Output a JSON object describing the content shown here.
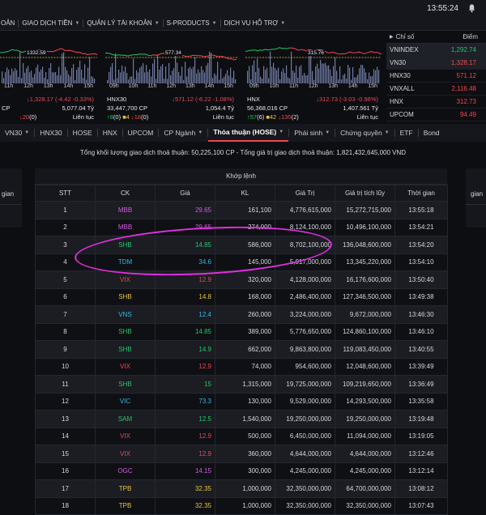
{
  "clock": "13:55:24",
  "menu": [
    {
      "label": "OẢN",
      "chevron": false
    },
    {
      "label": "GIAO DỊCH TIỀN",
      "chevron": true
    },
    {
      "label": "QUẢN LÝ TÀI KHOẢN",
      "chevron": true
    },
    {
      "label": "S-PRODUCTS",
      "chevron": true
    },
    {
      "label": "DỊCH VỤ HỖ TRỢ",
      "chevron": true
    }
  ],
  "charts": [
    {
      "name": "",
      "ref_label": "1332.59",
      "hours": [
        "11h",
        "12h",
        "13h",
        "14h",
        "15h"
      ],
      "value_line": "↓1,328.17 (-4.42 -0.33%)",
      "volume": "CP",
      "value": "5,077.04 Tỷ",
      "up": "",
      "down": "↓20",
      "down_extra": "(0)",
      "session": "Liên tục"
    },
    {
      "name": "HNX30",
      "ref_label": "577.34",
      "hours": [
        "09h",
        "10h",
        "11h",
        "12h",
        "13h",
        "14h",
        "15h"
      ],
      "value_line": "↓571.12 (-6.22 -1.08%)",
      "volume": "33,447,700 CP",
      "value": "1,054.4 Tỷ",
      "up": "↑8",
      "up_extra": "(0)",
      "flat": "■4",
      "down": "↓18",
      "down_extra": "(0)",
      "session": "Liên tục"
    },
    {
      "name": "HNX",
      "ref_label": "315.76",
      "hours": [
        "09h",
        "10h",
        "11h",
        "12h",
        "13h",
        "14h",
        "15h"
      ],
      "value_line": "↓312.73 (-3.03 -0.96%)",
      "volume": "56,368,016 CP",
      "value": "1,407.561 Tỷ",
      "up": "↑57",
      "up_extra": "(6)",
      "flat": "■42",
      "down": "↓135",
      "down_extra": "(2)",
      "session": "Liên tục"
    }
  ],
  "index_panel": {
    "col_name": "Chỉ số",
    "col_point": "Điểm",
    "rows": [
      {
        "name": "VNINDEX",
        "point": "1,292.74",
        "color": "#27c46b"
      },
      {
        "name": "VN30",
        "point": "1,328.17",
        "color": "#f0474f"
      },
      {
        "name": "HNX30",
        "point": "571.12",
        "color": "#f0474f"
      },
      {
        "name": "VNXALL",
        "point": "2,116.48",
        "color": "#f0474f"
      },
      {
        "name": "HNX",
        "point": "312.73",
        "color": "#f0474f"
      },
      {
        "name": "UPCOM",
        "point": "94.49",
        "color": "#f0474f"
      }
    ]
  },
  "tabs": [
    {
      "label": "VN30",
      "chevron": true,
      "active": false
    },
    {
      "label": "HNX30",
      "chevron": false,
      "active": false
    },
    {
      "label": "HOSE",
      "chevron": false,
      "active": false
    },
    {
      "label": "HNX",
      "chevron": false,
      "active": false
    },
    {
      "label": "UPCOM",
      "chevron": false,
      "active": false
    },
    {
      "label": "CP Ngành",
      "chevron": true,
      "active": false
    },
    {
      "label": "Thỏa thuận (HOSE)",
      "chevron": true,
      "active": true
    },
    {
      "label": "Phái sinh",
      "chevron": true,
      "active": false
    },
    {
      "label": "Chứng quyền",
      "chevron": true,
      "active": false
    },
    {
      "label": "ETF",
      "chevron": false,
      "active": false
    },
    {
      "label": "Bond",
      "chevron": false,
      "active": false
    }
  ],
  "summary": "Tổng khối lượng giao dịch thoả thuận: 50,225,100 CP - Tổng giá trị giao dịch thoả thuận: 1,821,432,645,000 VND",
  "left_stub_label": "gian",
  "right_stub_label": "gian",
  "table": {
    "group_header": "Khớp lệnh",
    "columns": [
      "STT",
      "CK",
      "Giá",
      "KL",
      "Giá Trị",
      "Giá trị tích lũy",
      "Thời gian"
    ],
    "rows": [
      {
        "stt": "1",
        "ck": "MBB",
        "price": "29.65",
        "kl": "161,100",
        "gt": "4,776,615,000",
        "gttl": "15,272,715,000",
        "time": "13:55:18",
        "ck_color": "#d25ce0",
        "price_color": "#d25ce0"
      },
      {
        "stt": "2",
        "ck": "MBB",
        "price": "29.65",
        "kl": "274,000",
        "gt": "8,124,100,000",
        "gttl": "10,496,100,000",
        "time": "13:54:21",
        "ck_color": "#d25ce0",
        "price_color": "#d25ce0"
      },
      {
        "stt": "3",
        "ck": "SHB",
        "price": "14.85",
        "kl": "586,000",
        "gt": "8,702,100,000",
        "gttl": "136,048,600,000",
        "time": "13:54:20",
        "ck_color": "#27c46b",
        "price_color": "#27c46b"
      },
      {
        "stt": "4",
        "ck": "TDM",
        "price": "34.6",
        "kl": "145,000",
        "gt": "5,017,000,000",
        "gttl": "13,345,220,000",
        "time": "13:54:10",
        "ck_color": "#33b9e8",
        "price_color": "#33b9e8"
      },
      {
        "stt": "5",
        "ck": "VIX",
        "price": "12.9",
        "kl": "320,000",
        "gt": "4,128,000,000",
        "gttl": "16,176,600,000",
        "time": "13:50:40",
        "ck_color": "#f0474f",
        "price_color": "#f0474f"
      },
      {
        "stt": "6",
        "ck": "SHB",
        "price": "14.8",
        "kl": "168,000",
        "gt": "2,486,400,000",
        "gttl": "127,346,500,000",
        "time": "13:49:38",
        "ck_color": "#e8c53a",
        "price_color": "#e8c53a"
      },
      {
        "stt": "7",
        "ck": "VNS",
        "price": "12.4",
        "kl": "260,000",
        "gt": "3,224,000,000",
        "gttl": "9,672,000,000",
        "time": "13:46:30",
        "ck_color": "#33b9e8",
        "price_color": "#33b9e8"
      },
      {
        "stt": "8",
        "ck": "SHB",
        "price": "14.85",
        "kl": "389,000",
        "gt": "5,776,650,000",
        "gttl": "124,860,100,000",
        "time": "13:46:10",
        "ck_color": "#27c46b",
        "price_color": "#27c46b"
      },
      {
        "stt": "9",
        "ck": "SHB",
        "price": "14.9",
        "kl": "662,000",
        "gt": "9,863,800,000",
        "gttl": "119,083,450,000",
        "time": "13:40:55",
        "ck_color": "#27c46b",
        "price_color": "#27c46b"
      },
      {
        "stt": "10",
        "ck": "VIX",
        "price": "12.9",
        "kl": "74,000",
        "gt": "954,600,000",
        "gttl": "12,048,600,000",
        "time": "13:39:49",
        "ck_color": "#f0474f",
        "price_color": "#f0474f"
      },
      {
        "stt": "11",
        "ck": "SHB",
        "price": "15",
        "kl": "1,315,000",
        "gt": "19,725,000,000",
        "gttl": "109,219,650,000",
        "time": "13:36:49",
        "ck_color": "#27c46b",
        "price_color": "#27c46b"
      },
      {
        "stt": "12",
        "ck": "VIC",
        "price": "73.3",
        "kl": "130,000",
        "gt": "9,529,000,000",
        "gttl": "14,293,500,000",
        "time": "13:35:58",
        "ck_color": "#33b9e8",
        "price_color": "#33b9e8"
      },
      {
        "stt": "13",
        "ck": "SAM",
        "price": "12.5",
        "kl": "1,540,000",
        "gt": "19,250,000,000",
        "gttl": "19,250,000,000",
        "time": "13:19:48",
        "ck_color": "#27c46b",
        "price_color": "#27c46b"
      },
      {
        "stt": "14",
        "ck": "VIX",
        "price": "12.9",
        "kl": "500,000",
        "gt": "6,450,000,000",
        "gttl": "11,094,000,000",
        "time": "13:19:05",
        "ck_color": "#f0474f",
        "price_color": "#f0474f"
      },
      {
        "stt": "15",
        "ck": "VIX",
        "price": "12.9",
        "kl": "360,000",
        "gt": "4,644,000,000",
        "gttl": "4,644,000,000",
        "time": "13:12:46",
        "ck_color": "#f0474f",
        "price_color": "#f0474f"
      },
      {
        "stt": "16",
        "ck": "OGC",
        "price": "14.15",
        "kl": "300,000",
        "gt": "4,245,000,000",
        "gttl": "4,245,000,000",
        "time": "13:12:14",
        "ck_color": "#d25ce0",
        "price_color": "#d25ce0"
      },
      {
        "stt": "17",
        "ck": "TPB",
        "price": "32.35",
        "kl": "1,000,000",
        "gt": "32,350,000,000",
        "gttl": "64,700,000,000",
        "time": "13:08:12",
        "ck_color": "#e8c53a",
        "price_color": "#e8c53a"
      },
      {
        "stt": "18",
        "ck": "TPB",
        "price": "32.35",
        "kl": "1,000,000",
        "gt": "32,350,000,000",
        "gttl": "32,350,000,000",
        "time": "13:07:43",
        "ck_color": "#e8c53a",
        "price_color": "#e8c53a"
      }
    ]
  },
  "highlight_annotation": {
    "shape": "ellipse",
    "color": "#e22fe0",
    "target_row": "4"
  }
}
